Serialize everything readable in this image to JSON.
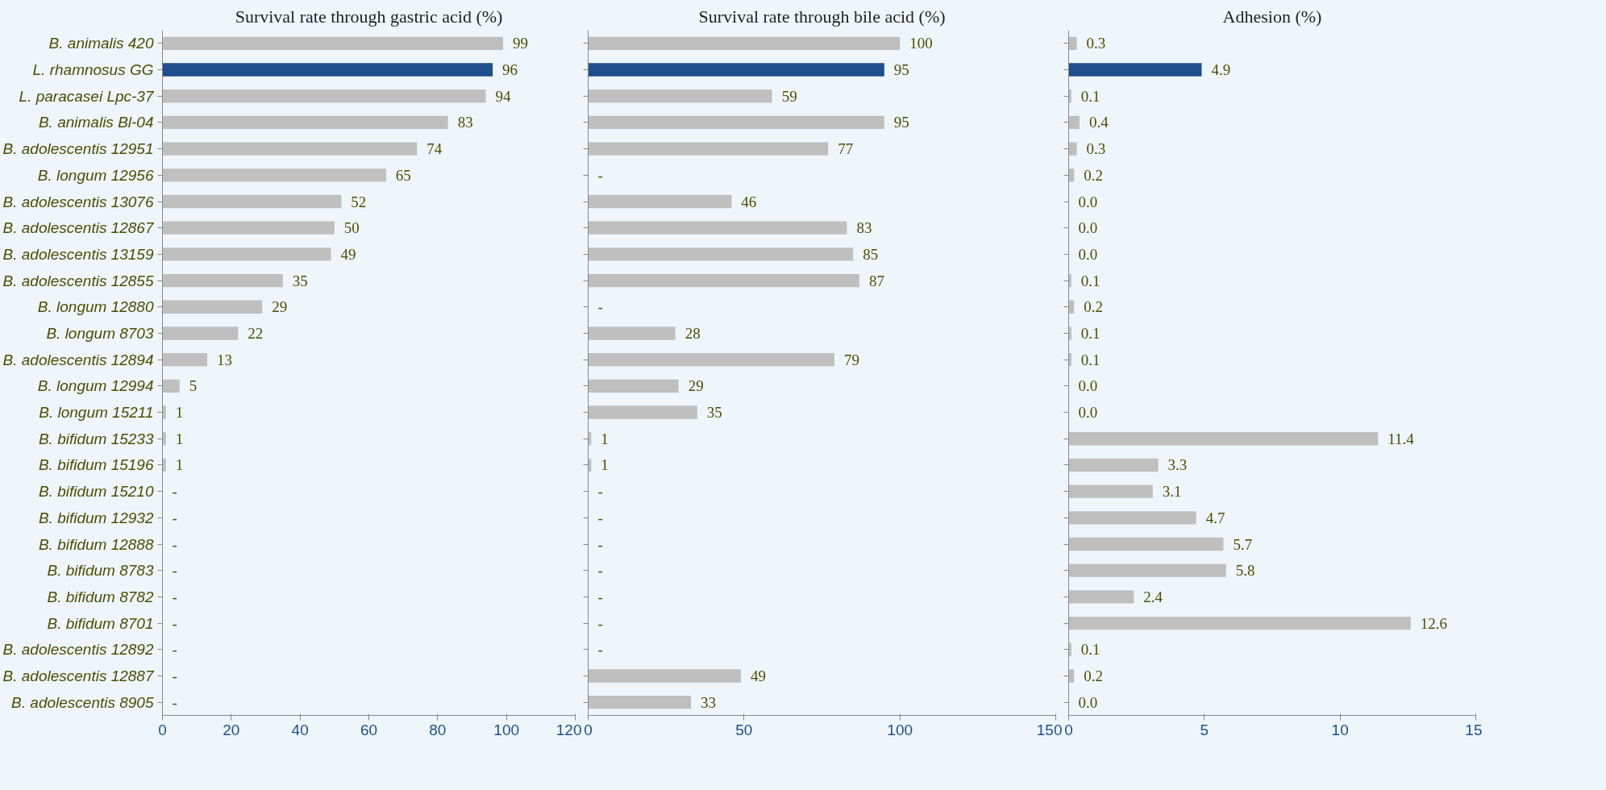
{
  "chart_data": [
    {
      "type": "bar",
      "orientation": "horizontal",
      "title": "Survival rate through gastric acid (%)",
      "categories": [
        "B. animalis 420",
        "L. rhamnosus GG",
        "L. paracasei Lpc-37",
        "B. animalis Bl-04",
        "B. adolescentis 12951",
        "B. longum 12956",
        "B. adolescentis 13076",
        "B. adolescentis 12867",
        "B. adolescentis 13159",
        "B. adolescentis 12855",
        "B. longum 12880",
        "B. longum 8703",
        "B. adolescentis 12894",
        "B. longum 12994",
        "B. longum 15211",
        "B. bifidum 15233",
        "B. bifidum 15196",
        "B. bifidum 15210",
        "B. bifidum 12932",
        "B. bifidum 12888",
        "B. bifidum 8783",
        "B. bifidum 8782",
        "B. bifidum 8701",
        "B. adolescentis 12892",
        "B. adolescentis 12887",
        "B. adolescentis 8905"
      ],
      "values": [
        99,
        96,
        94,
        83,
        74,
        65,
        52,
        50,
        49,
        35,
        29,
        22,
        13,
        5,
        1,
        1,
        1,
        null,
        null,
        null,
        null,
        null,
        null,
        null,
        null,
        null
      ],
      "value_labels": [
        "99",
        "96",
        "94",
        "83",
        "74",
        "65",
        "52",
        "50",
        "49",
        "35",
        "29",
        "22",
        "13",
        "5",
        "1",
        "1",
        "1",
        "-",
        "-",
        "-",
        "-",
        "-",
        "-",
        "-",
        "-",
        "-"
      ],
      "colors": [
        "#bfbfbf",
        "#1f4e8c",
        "#bfbfbf",
        "#bfbfbf",
        "#bfbfbf",
        "#bfbfbf",
        "#bfbfbf",
        "#bfbfbf",
        "#bfbfbf",
        "#bfbfbf",
        "#bfbfbf",
        "#bfbfbf",
        "#bfbfbf",
        "#bfbfbf",
        "#bfbfbf",
        "#bfbfbf",
        "#bfbfbf",
        "#bfbfbf",
        "#bfbfbf",
        "#bfbfbf",
        "#bfbfbf",
        "#bfbfbf",
        "#bfbfbf",
        "#bfbfbf",
        "#bfbfbf",
        "#bfbfbf"
      ],
      "xlim": [
        0,
        120
      ],
      "xticks": [
        0,
        20,
        40,
        60,
        80,
        100,
        120
      ]
    },
    {
      "type": "bar",
      "orientation": "horizontal",
      "title": "Survival rate through bile acid (%)",
      "values": [
        100,
        95,
        59,
        95,
        77,
        null,
        46,
        83,
        85,
        87,
        null,
        28,
        79,
        29,
        35,
        1,
        1,
        null,
        null,
        null,
        null,
        null,
        null,
        null,
        49,
        33
      ],
      "value_labels": [
        "100",
        "95",
        "59",
        "95",
        "77",
        "-",
        "46",
        "83",
        "85",
        "87",
        "-",
        "28",
        "79",
        "29",
        "35",
        "1",
        "1",
        "-",
        "-",
        "-",
        "-",
        "-",
        "-",
        "-",
        "49",
        "33"
      ],
      "colors": [
        "#bfbfbf",
        "#1f4e8c",
        "#bfbfbf",
        "#bfbfbf",
        "#bfbfbf",
        "#bfbfbf",
        "#bfbfbf",
        "#bfbfbf",
        "#bfbfbf",
        "#bfbfbf",
        "#bfbfbf",
        "#bfbfbf",
        "#bfbfbf",
        "#bfbfbf",
        "#bfbfbf",
        "#bfbfbf",
        "#bfbfbf",
        "#bfbfbf",
        "#bfbfbf",
        "#bfbfbf",
        "#bfbfbf",
        "#bfbfbf",
        "#bfbfbf",
        "#bfbfbf",
        "#bfbfbf",
        "#bfbfbf"
      ],
      "xlim": [
        0,
        150
      ],
      "xticks": [
        0,
        50,
        100,
        150
      ]
    },
    {
      "type": "bar",
      "orientation": "horizontal",
      "title": "Adhesion (%)",
      "values": [
        0.3,
        4.9,
        0.1,
        0.4,
        0.3,
        0.2,
        0.0,
        0.0,
        0.0,
        0.1,
        0.2,
        0.1,
        0.1,
        0.0,
        0.0,
        11.4,
        3.3,
        3.1,
        4.7,
        5.7,
        5.8,
        2.4,
        12.6,
        0.1,
        0.2,
        0.0
      ],
      "value_labels": [
        "0.3",
        "4.9",
        "0.1",
        "0.4",
        "0.3",
        "0.2",
        "0.0",
        "0.0",
        "0.0",
        "0.1",
        "0.2",
        "0.1",
        "0.1",
        "0.0",
        "0.0",
        "11.4",
        "3.3",
        "3.1",
        "4.7",
        "5.7",
        "5.8",
        "2.4",
        "12.6",
        "0.1",
        "0.2",
        "0.0"
      ],
      "colors": [
        "#bfbfbf",
        "#1f4e8c",
        "#bfbfbf",
        "#bfbfbf",
        "#bfbfbf",
        "#bfbfbf",
        "#bfbfbf",
        "#bfbfbf",
        "#bfbfbf",
        "#bfbfbf",
        "#bfbfbf",
        "#bfbfbf",
        "#bfbfbf",
        "#bfbfbf",
        "#bfbfbf",
        "#bfbfbf",
        "#bfbfbf",
        "#bfbfbf",
        "#bfbfbf",
        "#bfbfbf",
        "#bfbfbf",
        "#bfbfbf",
        "#bfbfbf",
        "#bfbfbf",
        "#bfbfbf",
        "#bfbfbf"
      ],
      "xlim": [
        0,
        15
      ],
      "xticks": [
        0,
        5,
        10,
        15
      ]
    }
  ]
}
